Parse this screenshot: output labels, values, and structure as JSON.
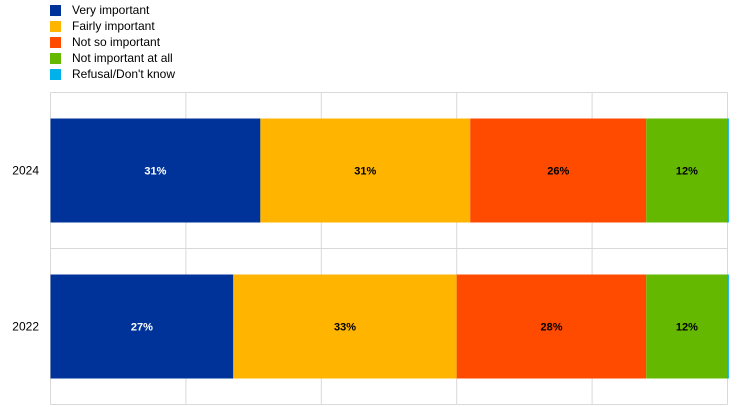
{
  "chart_data": {
    "type": "bar",
    "orientation": "horizontal",
    "stacked": true,
    "categories": [
      "2024",
      "2022"
    ],
    "series": [
      {
        "name": "Very important",
        "values": [
          31,
          27
        ],
        "labels": [
          "31%",
          "27%"
        ],
        "color": "#003399",
        "label_color": "#ffffff"
      },
      {
        "name": "Fairly important",
        "values": [
          31,
          33
        ],
        "labels": [
          "31%",
          "33%"
        ],
        "color": "#FFB400",
        "label_color": "#000000"
      },
      {
        "name": "Not so important",
        "values": [
          26,
          28
        ],
        "labels": [
          "26%",
          "28%"
        ],
        "color": "#FF4B00",
        "label_color": "#000000"
      },
      {
        "name": "Not important at all",
        "values": [
          12,
          12
        ],
        "labels": [
          "12%",
          "12%"
        ],
        "color": "#65B800",
        "label_color": "#000000"
      },
      {
        "name": "Refusal/Don't know",
        "values": [
          0.2,
          0.2
        ],
        "labels": [
          "",
          ""
        ],
        "color": "#00B1EA",
        "label_color": "#000000"
      }
    ],
    "xlim": [
      0,
      100
    ],
    "grid": true,
    "legend_position": "top-left"
  }
}
